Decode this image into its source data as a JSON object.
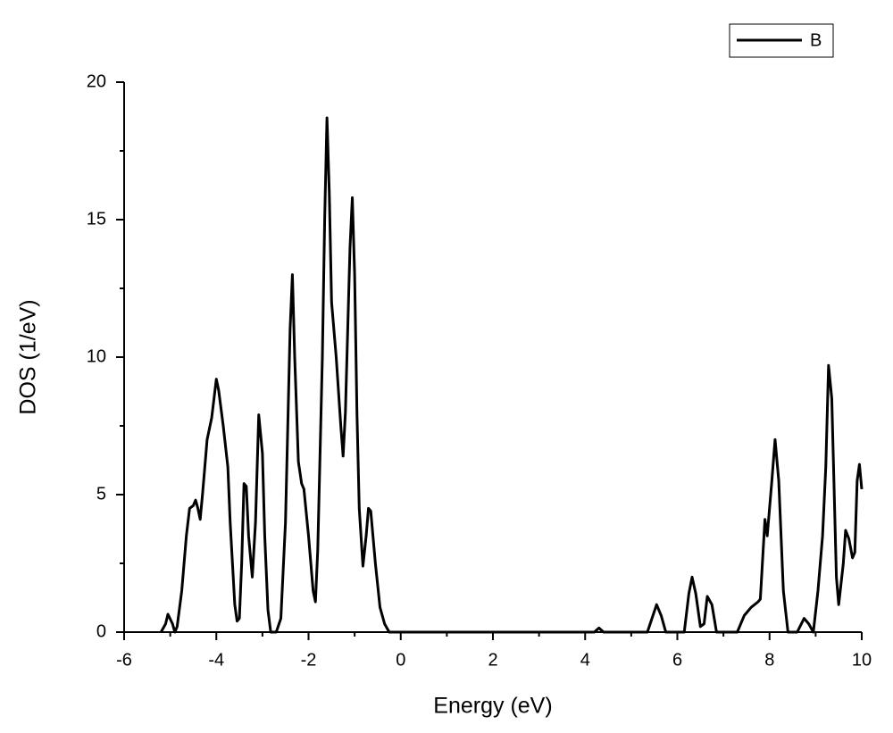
{
  "chart_data": {
    "type": "line",
    "x_label": "Energy (eV)",
    "y_label": "DOS (1/eV)",
    "xlim": [
      -6,
      10
    ],
    "ylim": [
      0,
      20
    ],
    "xticks": [
      -6,
      -4,
      -2,
      0,
      2,
      4,
      6,
      8,
      10
    ],
    "yticks": [
      0,
      5,
      10,
      15,
      20
    ],
    "minor_xticks": [
      -5,
      -3,
      -1,
      1,
      3,
      5,
      7,
      9
    ],
    "minor_yticks": [
      2.5,
      7.5,
      12.5,
      17.5
    ],
    "legend": "upper right",
    "x": [
      -5.2,
      -5.1,
      -5.05,
      -4.95,
      -4.9,
      -4.85,
      -4.75,
      -4.65,
      -4.58,
      -4.5,
      -4.45,
      -4.4,
      -4.35,
      -4.3,
      -4.2,
      -4.1,
      -4.05,
      -4.0,
      -3.95,
      -3.85,
      -3.75,
      -3.7,
      -3.6,
      -3.55,
      -3.5,
      -3.45,
      -3.4,
      -3.35,
      -3.3,
      -3.22,
      -3.15,
      -3.08,
      -3.0,
      -2.95,
      -2.88,
      -2.82,
      -2.7,
      -2.6,
      -2.5,
      -2.4,
      -2.35,
      -2.3,
      -2.22,
      -2.15,
      -2.1,
      -2.0,
      -1.9,
      -1.85,
      -1.8,
      -1.7,
      -1.65,
      -1.6,
      -1.55,
      -1.5,
      -1.4,
      -1.3,
      -1.25,
      -1.2,
      -1.1,
      -1.05,
      -1.0,
      -0.95,
      -0.9,
      -0.82,
      -0.75,
      -0.7,
      -0.65,
      -0.55,
      -0.45,
      -0.35,
      -0.25,
      4.2,
      4.3,
      4.4,
      5.35,
      5.45,
      5.55,
      5.65,
      5.75,
      6.15,
      6.25,
      6.32,
      6.4,
      6.5,
      6.58,
      6.65,
      6.75,
      6.85,
      7.3,
      7.45,
      7.6,
      7.75,
      7.8,
      7.9,
      7.95,
      8.05,
      8.12,
      8.2,
      8.3,
      8.4,
      8.6,
      8.75,
      8.85,
      8.95,
      9.05,
      9.15,
      9.22,
      9.28,
      9.35,
      9.45,
      9.5,
      9.6,
      9.65,
      9.72,
      9.8,
      9.85,
      9.9,
      9.95,
      10.0
    ],
    "series": [
      {
        "name": "B",
        "color": "#000000",
        "values": [
          0,
          0.3,
          0.65,
          0.3,
          0,
          0.2,
          1.5,
          3.5,
          4.5,
          4.6,
          4.8,
          4.5,
          4.1,
          5,
          7,
          7.8,
          8.5,
          9.2,
          8.8,
          7.5,
          6,
          4,
          1,
          0.4,
          0.5,
          2.5,
          5.4,
          5.3,
          3.5,
          2,
          4,
          7.9,
          6.5,
          3.5,
          0.8,
          0,
          0,
          0.5,
          4,
          11,
          13,
          10,
          6.2,
          5.4,
          5.2,
          3.5,
          1.5,
          1.1,
          3,
          10,
          15,
          18.7,
          16,
          12,
          10,
          7.5,
          6.4,
          8,
          14,
          15.8,
          13,
          8,
          4.5,
          2.4,
          3.5,
          4.5,
          4.4,
          2.5,
          0.9,
          0.3,
          0,
          0,
          0.15,
          0,
          0,
          0.5,
          1,
          0.6,
          0,
          0,
          1.4,
          2,
          1.4,
          0.2,
          0.3,
          1.3,
          1,
          0,
          0,
          0.6,
          0.9,
          1.1,
          1.2,
          4.1,
          3.5,
          5.5,
          7,
          5.5,
          1.5,
          0,
          0,
          0.5,
          0.3,
          0,
          1.5,
          3.5,
          6,
          9.7,
          8.5,
          2,
          1,
          2.5,
          3.7,
          3.4,
          2.7,
          2.9,
          5.5,
          6.1,
          5.2
        ]
      }
    ]
  }
}
